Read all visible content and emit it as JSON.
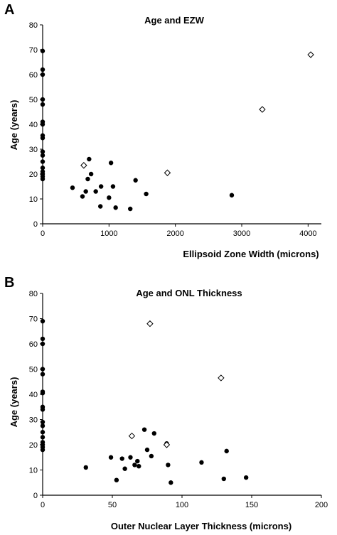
{
  "chart_data": [
    {
      "panel": "A",
      "type": "scatter",
      "title": "Age and EZW",
      "xlabel": "Ellipsoid Zone Width (microns)",
      "ylabel": "Age (years)",
      "xlim": [
        0,
        4200
      ],
      "ylim": [
        0,
        80
      ],
      "xticks": [
        0,
        1000,
        2000,
        3000,
        4000
      ],
      "yticks": [
        0,
        10,
        20,
        30,
        40,
        50,
        60,
        70,
        80
      ],
      "grid": false,
      "series": [
        {
          "marker": "filled-circle",
          "points": [
            [
              0,
              69.5
            ],
            [
              0,
              62
            ],
            [
              0,
              60
            ],
            [
              0,
              50
            ],
            [
              0,
              48
            ],
            [
              0,
              41
            ],
            [
              0,
              40
            ],
            [
              0,
              35.5
            ],
            [
              0,
              34.5
            ],
            [
              0,
              29
            ],
            [
              0,
              27.5
            ],
            [
              0,
              25
            ],
            [
              0,
              22.5
            ],
            [
              0,
              21
            ],
            [
              0,
              20
            ],
            [
              0,
              19
            ],
            [
              0,
              18
            ],
            [
              450,
              14.5
            ],
            [
              600,
              11
            ],
            [
              650,
              13
            ],
            [
              680,
              18
            ],
            [
              700,
              26
            ],
            [
              730,
              20
            ],
            [
              800,
              13
            ],
            [
              880,
              15
            ],
            [
              870,
              7
            ],
            [
              1000,
              10.5
            ],
            [
              1030,
              24.5
            ],
            [
              1060,
              15
            ],
            [
              1100,
              6.5
            ],
            [
              1320,
              6
            ],
            [
              1400,
              17.5
            ],
            [
              1560,
              12
            ],
            [
              2850,
              11.5
            ]
          ]
        },
        {
          "marker": "open-diamond",
          "points": [
            [
              620,
              23.5
            ],
            [
              1880,
              20.5
            ],
            [
              3310,
              46
            ],
            [
              4040,
              68
            ]
          ]
        }
      ]
    },
    {
      "panel": "B",
      "type": "scatter",
      "title": "Age and ONL Thickness",
      "xlabel": "Outer Nuclear Layer Thickness (microns)",
      "ylabel": "Age (years)",
      "xlim": [
        0,
        200
      ],
      "ylim": [
        0,
        80
      ],
      "xticks": [
        0,
        50,
        100,
        150,
        200
      ],
      "yticks": [
        0,
        10,
        20,
        30,
        40,
        50,
        60,
        70,
        80
      ],
      "grid": false,
      "series": [
        {
          "marker": "filled-circle",
          "points": [
            [
              0,
              69
            ],
            [
              0,
              62
            ],
            [
              0,
              60
            ],
            [
              0,
              50
            ],
            [
              0,
              48
            ],
            [
              0,
              41
            ],
            [
              0,
              40.5
            ],
            [
              0,
              35
            ],
            [
              0,
              34
            ],
            [
              0,
              29
            ],
            [
              0,
              27.5
            ],
            [
              0,
              25
            ],
            [
              0,
              23
            ],
            [
              0,
              21
            ],
            [
              0,
              20
            ],
            [
              0,
              19
            ],
            [
              0,
              18
            ],
            [
              31,
              11
            ],
            [
              49,
              15
            ],
            [
              53,
              6
            ],
            [
              57,
              14.5
            ],
            [
              59,
              10.5
            ],
            [
              63,
              15
            ],
            [
              66,
              12
            ],
            [
              68,
              13.5
            ],
            [
              69,
              11.5
            ],
            [
              73,
              26
            ],
            [
              75,
              18
            ],
            [
              78,
              15.5
            ],
            [
              80,
              24.5
            ],
            [
              89,
              20.5
            ],
            [
              90,
              12
            ],
            [
              92,
              5
            ],
            [
              114,
              13
            ],
            [
              130,
              6.5
            ],
            [
              132,
              17.5
            ],
            [
              146,
              7
            ]
          ]
        },
        {
          "marker": "open-diamond",
          "points": [
            [
              64,
              23.5
            ],
            [
              77,
              68
            ],
            [
              89,
              20
            ],
            [
              128,
              46.5
            ]
          ]
        }
      ]
    }
  ]
}
